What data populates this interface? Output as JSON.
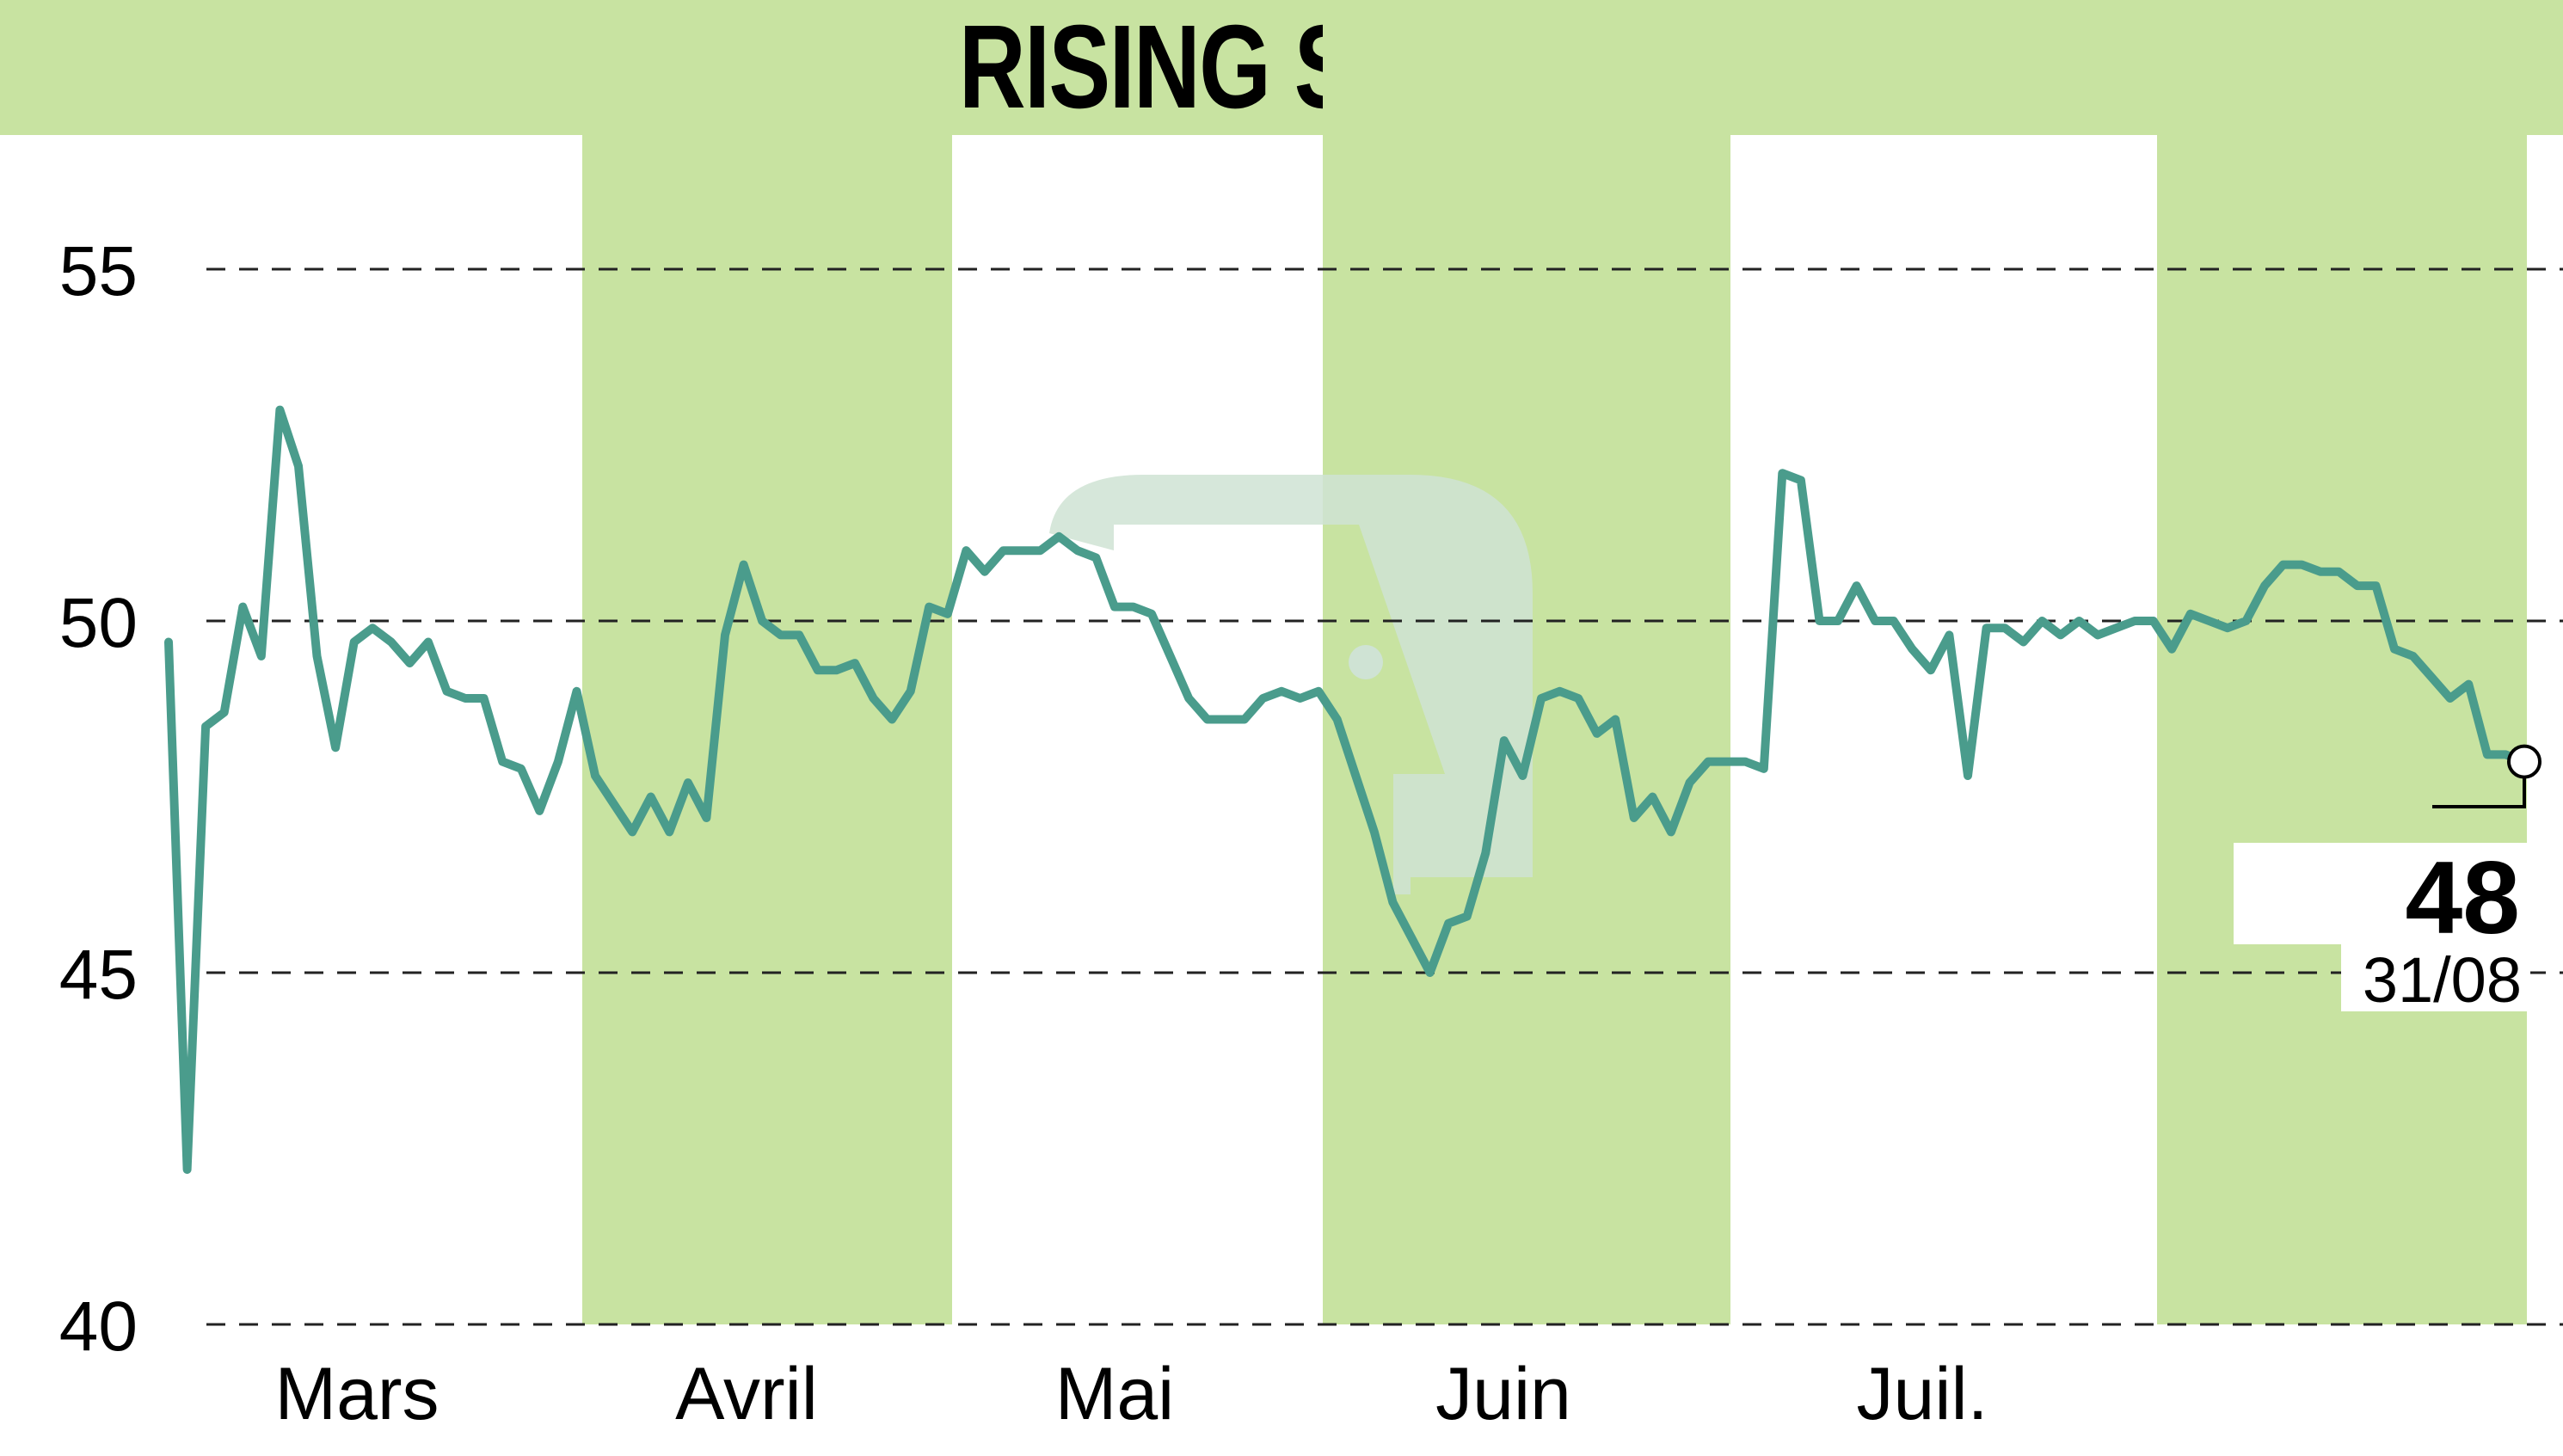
{
  "header": {
    "title": "RISING STONE"
  },
  "colors": {
    "band": "#c8e3a1",
    "line": "#4a9c8c",
    "watermark": "#cfe3d4"
  },
  "chart_data": {
    "type": "line",
    "title": "RISING STONE",
    "ylim": [
      40,
      55
    ],
    "yticks": [
      {
        "label": "55",
        "value": 55
      },
      {
        "label": "50",
        "value": 50
      },
      {
        "label": "45",
        "value": 45
      },
      {
        "label": "40",
        "value": 40
      }
    ],
    "months": [
      "Mars",
      "Avril",
      "Mai",
      "Juin",
      "Juil."
    ],
    "grid": "horizontal dashed",
    "last": {
      "value": "48",
      "date": "31/08"
    },
    "series": [
      {
        "values": [
          49.7,
          42.2,
          48.5,
          48.7,
          50.2,
          49.5,
          53.0,
          52.2,
          49.5,
          48.2,
          49.7,
          49.9,
          49.7,
          49.4,
          49.7,
          49.0,
          48.9,
          48.9,
          48.0,
          47.9,
          47.3,
          48.0,
          49.0,
          47.8,
          47.4,
          47.0,
          47.5,
          47.0,
          47.7,
          47.2,
          49.8,
          50.8,
          50.0,
          49.8,
          49.8,
          49.3,
          49.3,
          49.4,
          48.9,
          48.6,
          49.0,
          50.2,
          50.1,
          51.0,
          50.7,
          51.0,
          51.0,
          51.0,
          51.2,
          51.0,
          50.9,
          50.2,
          50.2,
          50.1,
          49.5,
          48.9,
          48.6,
          48.6,
          48.6,
          48.9,
          49.0,
          48.9,
          49.0,
          48.6,
          47.8,
          47.0,
          46.0,
          45.5,
          45.0,
          45.7,
          45.8,
          46.7,
          48.3,
          47.8,
          48.9,
          49.0,
          48.9,
          48.4,
          48.6,
          47.2,
          47.5,
          47.0,
          47.7,
          48.0,
          48.0,
          48.0,
          47.9,
          52.1,
          52.0,
          50.0,
          50.0,
          50.5,
          50.0,
          50.0,
          49.6,
          49.3,
          49.8,
          47.8,
          49.9,
          49.9,
          49.7,
          50.0,
          49.8,
          50.0,
          49.8,
          49.9,
          50.0,
          50.0,
          49.6,
          50.1,
          50.0,
          49.9,
          50.0,
          50.5,
          50.8,
          50.8,
          50.7,
          50.7,
          50.5,
          50.5,
          49.6,
          49.5,
          49.2,
          48.9,
          49.1,
          48.1,
          48.1,
          48.0
        ]
      }
    ]
  }
}
